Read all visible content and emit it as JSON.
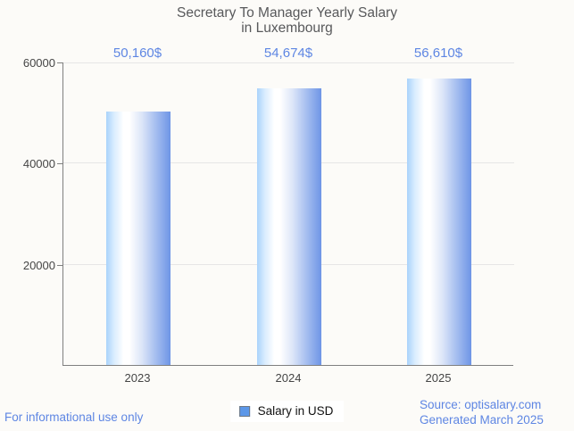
{
  "title": {
    "line1": "Secretary To Manager Yearly Salary",
    "line2": "in Luxembourg"
  },
  "chart_data": {
    "type": "bar",
    "categories": [
      "2023",
      "2024",
      "2025"
    ],
    "values": [
      50160,
      54674,
      56610
    ],
    "value_labels": [
      "50,160$",
      "54,674$",
      "56,610$"
    ],
    "series_name": "Salary in USD",
    "title": "Secretary To Manager Yearly Salary in Luxembourg",
    "xlabel": "",
    "ylabel": "",
    "ylim": [
      0,
      60000
    ],
    "yticks": [
      20000,
      40000,
      60000
    ],
    "ytick_labels": [
      "20000",
      "40000",
      "60000"
    ],
    "grid": true,
    "legend_position": "bottom-center",
    "colors": {
      "bar_edge_left": "#a9d3fb",
      "bar_mid": "#ffffff",
      "bar_edge_right": "#6e95e6",
      "value_label_text": "#5e86e3",
      "legend_swatch": "#5c97e8",
      "axis_line": "#7f7f7f",
      "gridline": "#e6e6e6",
      "background": "#fcfbf8"
    }
  },
  "legend": {
    "label": "Salary in USD"
  },
  "footer": {
    "left_note": "For informational use only",
    "source_line1": "Source: optisalary.com",
    "source_line2": "Generated March 2025"
  }
}
